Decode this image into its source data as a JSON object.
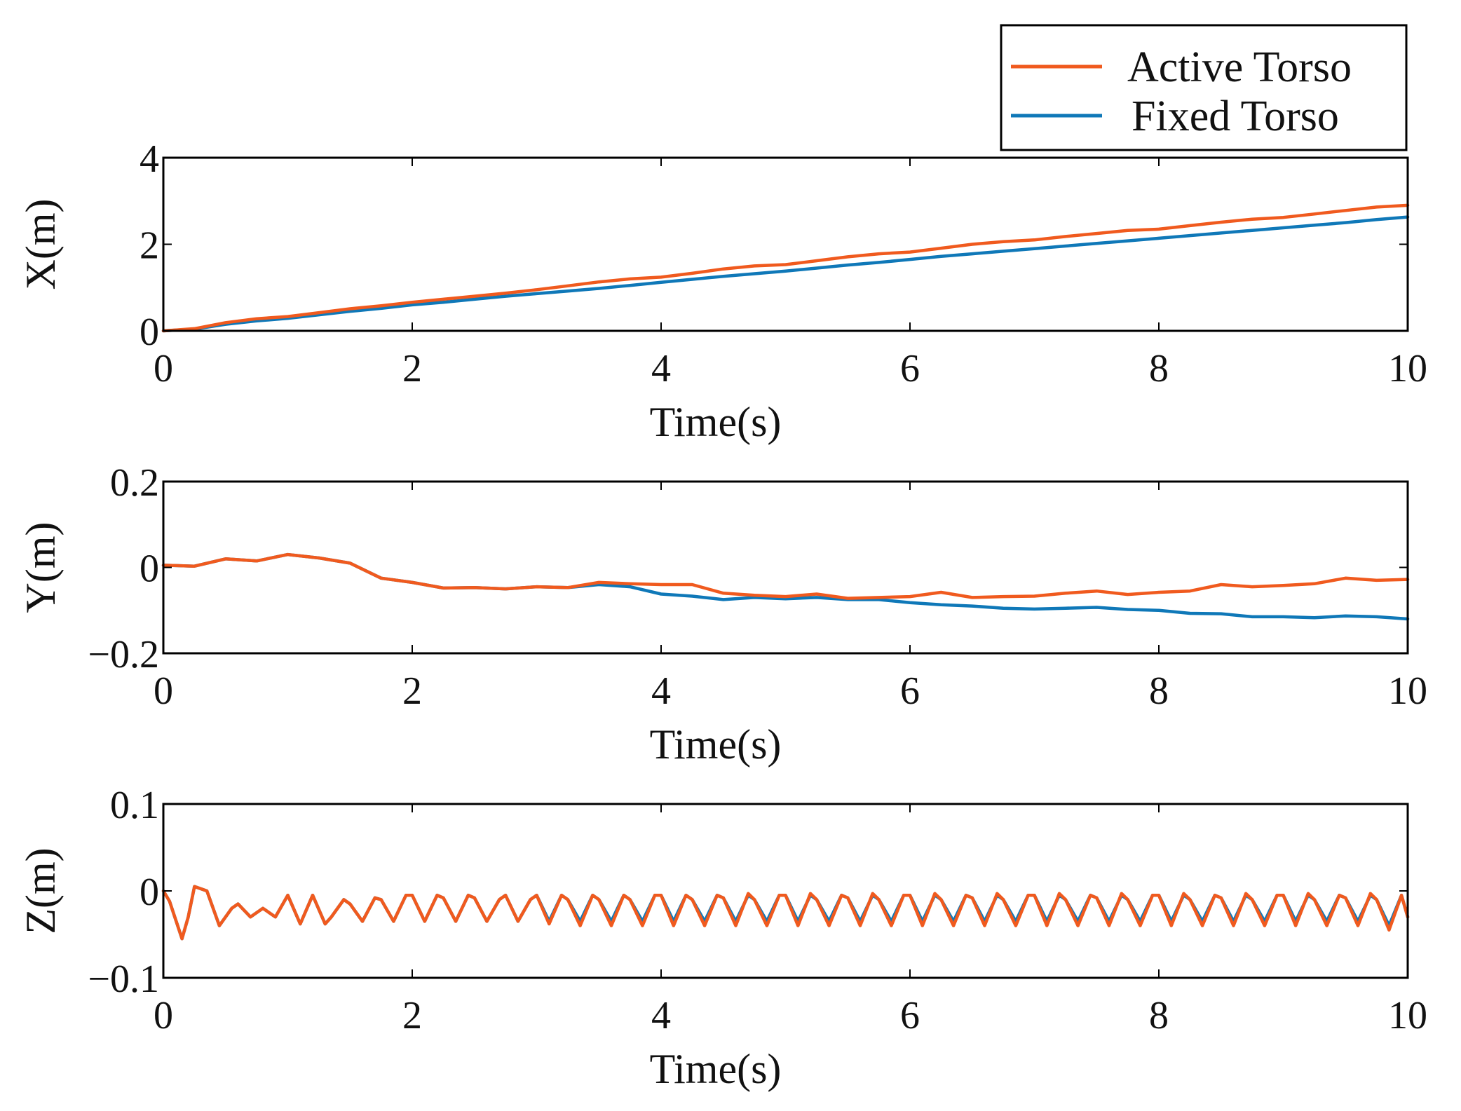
{
  "legend": {
    "entries": [
      {
        "name": "Active Torso",
        "color": "#F05A1E"
      },
      {
        "name": "Fixed Torso",
        "color": "#0F78B8"
      }
    ]
  },
  "chart_data": [
    {
      "type": "line",
      "ylabel": "X(m)",
      "xlabel": "Time(s)",
      "xlim": [
        0,
        10
      ],
      "ylim": [
        0,
        4
      ],
      "xticks": [
        0,
        2,
        4,
        6,
        8,
        10
      ],
      "yticks": [
        0,
        2,
        4
      ],
      "ytick_labels": [
        "0",
        "2",
        "4"
      ],
      "x": [
        0,
        0.25,
        0.5,
        0.75,
        1,
        1.25,
        1.5,
        1.75,
        2,
        2.25,
        2.5,
        2.75,
        3,
        3.25,
        3.5,
        3.75,
        4,
        4.25,
        4.5,
        4.75,
        5,
        5.25,
        5.5,
        5.75,
        6,
        6.25,
        6.5,
        6.75,
        7,
        7.25,
        7.5,
        7.75,
        8,
        8.25,
        8.5,
        8.75,
        9,
        9.25,
        9.5,
        9.75,
        10
      ],
      "series": [
        {
          "name": "Active Torso",
          "values": [
            0.0,
            0.05,
            0.19,
            0.28,
            0.33,
            0.42,
            0.51,
            0.58,
            0.66,
            0.73,
            0.8,
            0.87,
            0.95,
            1.04,
            1.13,
            1.2,
            1.24,
            1.33,
            1.43,
            1.5,
            1.53,
            1.62,
            1.71,
            1.78,
            1.82,
            1.91,
            2.0,
            2.06,
            2.1,
            2.18,
            2.25,
            2.32,
            2.35,
            2.43,
            2.51,
            2.58,
            2.62,
            2.7,
            2.78,
            2.86,
            2.9
          ]
        },
        {
          "name": "Fixed Torso",
          "values": [
            0.0,
            0.04,
            0.15,
            0.23,
            0.29,
            0.37,
            0.45,
            0.52,
            0.6,
            0.66,
            0.73,
            0.8,
            0.86,
            0.92,
            0.98,
            1.05,
            1.12,
            1.19,
            1.26,
            1.32,
            1.38,
            1.45,
            1.52,
            1.58,
            1.65,
            1.72,
            1.78,
            1.84,
            1.9,
            1.96,
            2.02,
            2.08,
            2.14,
            2.2,
            2.26,
            2.32,
            2.38,
            2.44,
            2.5,
            2.57,
            2.63
          ]
        }
      ]
    },
    {
      "type": "line",
      "ylabel": "Y(m)",
      "xlabel": "Time(s)",
      "xlim": [
        0,
        10
      ],
      "ylim": [
        -0.2,
        0.2
      ],
      "xticks": [
        0,
        2,
        4,
        6,
        8,
        10
      ],
      "yticks": [
        -0.2,
        0,
        0.2
      ],
      "ytick_labels": [
        "−0.2",
        "0",
        "0.2"
      ],
      "x": [
        0,
        0.25,
        0.5,
        0.75,
        1,
        1.25,
        1.5,
        1.75,
        2,
        2.25,
        2.5,
        2.75,
        3,
        3.25,
        3.5,
        3.75,
        4,
        4.25,
        4.5,
        4.75,
        5,
        5.25,
        5.5,
        5.75,
        6,
        6.25,
        6.5,
        6.75,
        7,
        7.25,
        7.5,
        7.75,
        8,
        8.25,
        8.5,
        8.75,
        9,
        9.25,
        9.5,
        9.75,
        10
      ],
      "series": [
        {
          "name": "Active Torso",
          "values": [
            0.005,
            0.003,
            0.02,
            0.015,
            0.03,
            0.022,
            0.01,
            -0.025,
            -0.035,
            -0.048,
            -0.047,
            -0.05,
            -0.045,
            -0.047,
            -0.035,
            -0.038,
            -0.04,
            -0.04,
            -0.06,
            -0.065,
            -0.068,
            -0.062,
            -0.072,
            -0.07,
            -0.068,
            -0.058,
            -0.07,
            -0.068,
            -0.067,
            -0.06,
            -0.055,
            -0.063,
            -0.058,
            -0.055,
            -0.04,
            -0.045,
            -0.042,
            -0.038,
            -0.025,
            -0.03,
            -0.028
          ]
        },
        {
          "name": "Fixed Torso",
          "values": [
            0.005,
            0.003,
            0.02,
            0.015,
            0.03,
            0.022,
            0.01,
            -0.025,
            -0.035,
            -0.048,
            -0.047,
            -0.05,
            -0.045,
            -0.047,
            -0.04,
            -0.045,
            -0.062,
            -0.067,
            -0.075,
            -0.07,
            -0.073,
            -0.07,
            -0.075,
            -0.075,
            -0.082,
            -0.087,
            -0.09,
            -0.095,
            -0.097,
            -0.095,
            -0.093,
            -0.098,
            -0.1,
            -0.107,
            -0.108,
            -0.115,
            -0.115,
            -0.117,
            -0.113,
            -0.115,
            -0.12
          ]
        }
      ]
    },
    {
      "type": "line",
      "ylabel": "Z(m)",
      "xlabel": "Time(s)",
      "xlim": [
        0,
        10
      ],
      "ylim": [
        -0.1,
        0.1
      ],
      "xticks": [
        0,
        2,
        4,
        6,
        8,
        10
      ],
      "yticks": [
        -0.1,
        0,
        0.1
      ],
      "ytick_labels": [
        "−0.1",
        "0",
        "0.1"
      ],
      "x": [
        0,
        0.05,
        0.15,
        0.2,
        0.25,
        0.35,
        0.45,
        0.55,
        0.6,
        0.7,
        0.8,
        0.9,
        1.0,
        1.1,
        1.2,
        1.3,
        1.35,
        1.45,
        1.5,
        1.6,
        1.7,
        1.75,
        1.85,
        1.95,
        2.0,
        2.1,
        2.2,
        2.25,
        2.35,
        2.45,
        2.5,
        2.6,
        2.7,
        2.75,
        2.85,
        2.95,
        3.0,
        3.1,
        3.2,
        3.25,
        3.35,
        3.45,
        3.5,
        3.6,
        3.7,
        3.75,
        3.85,
        3.95,
        4.0,
        4.1,
        4.2,
        4.25,
        4.35,
        4.45,
        4.5,
        4.6,
        4.7,
        4.75,
        4.85,
        4.95,
        5.0,
        5.1,
        5.2,
        5.25,
        5.35,
        5.45,
        5.5,
        5.6,
        5.7,
        5.75,
        5.85,
        5.95,
        6.0,
        6.1,
        6.2,
        6.25,
        6.35,
        6.45,
        6.5,
        6.6,
        6.7,
        6.75,
        6.85,
        6.95,
        7.0,
        7.1,
        7.2,
        7.25,
        7.35,
        7.45,
        7.5,
        7.6,
        7.7,
        7.75,
        7.85,
        7.95,
        8.0,
        8.1,
        8.2,
        8.25,
        8.35,
        8.45,
        8.5,
        8.6,
        8.7,
        8.75,
        8.85,
        8.95,
        9.0,
        9.1,
        9.2,
        9.25,
        9.35,
        9.45,
        9.5,
        9.6,
        9.7,
        9.75,
        9.85,
        9.95,
        10.0
      ],
      "series": [
        {
          "name": "Active Torso",
          "values": [
            0.0,
            -0.012,
            -0.055,
            -0.03,
            0.005,
            0.0,
            -0.04,
            -0.02,
            -0.015,
            -0.03,
            -0.02,
            -0.03,
            -0.005,
            -0.038,
            -0.005,
            -0.038,
            -0.03,
            -0.01,
            -0.015,
            -0.035,
            -0.008,
            -0.01,
            -0.035,
            -0.005,
            -0.005,
            -0.035,
            -0.005,
            -0.008,
            -0.035,
            -0.005,
            -0.008,
            -0.035,
            -0.01,
            -0.005,
            -0.035,
            -0.01,
            -0.005,
            -0.038,
            -0.005,
            -0.01,
            -0.04,
            -0.005,
            -0.01,
            -0.04,
            -0.005,
            -0.01,
            -0.04,
            -0.005,
            -0.005,
            -0.04,
            -0.005,
            -0.01,
            -0.04,
            -0.005,
            -0.008,
            -0.04,
            -0.003,
            -0.01,
            -0.04,
            -0.005,
            -0.005,
            -0.04,
            -0.003,
            -0.01,
            -0.04,
            -0.005,
            -0.008,
            -0.04,
            -0.003,
            -0.01,
            -0.04,
            -0.005,
            -0.005,
            -0.04,
            -0.003,
            -0.01,
            -0.04,
            -0.005,
            -0.008,
            -0.04,
            -0.003,
            -0.01,
            -0.04,
            -0.005,
            -0.005,
            -0.04,
            -0.003,
            -0.01,
            -0.04,
            -0.005,
            -0.008,
            -0.04,
            -0.003,
            -0.01,
            -0.04,
            -0.005,
            -0.005,
            -0.04,
            -0.003,
            -0.01,
            -0.04,
            -0.005,
            -0.008,
            -0.04,
            -0.003,
            -0.01,
            -0.04,
            -0.005,
            -0.005,
            -0.04,
            -0.003,
            -0.01,
            -0.04,
            -0.005,
            -0.008,
            -0.04,
            -0.003,
            -0.01,
            -0.045,
            -0.005,
            -0.03
          ]
        },
        {
          "name": "Fixed Torso",
          "values": [
            0.0,
            -0.012,
            -0.055,
            -0.03,
            0.005,
            0.0,
            -0.04,
            -0.02,
            -0.015,
            -0.03,
            -0.02,
            -0.03,
            -0.005,
            -0.038,
            -0.005,
            -0.038,
            -0.03,
            -0.01,
            -0.015,
            -0.035,
            -0.008,
            -0.01,
            -0.035,
            -0.005,
            -0.005,
            -0.035,
            -0.005,
            -0.008,
            -0.035,
            -0.005,
            -0.008,
            -0.035,
            -0.01,
            -0.005,
            -0.035,
            -0.01,
            -0.005,
            -0.035,
            -0.005,
            -0.01,
            -0.035,
            -0.005,
            -0.01,
            -0.035,
            -0.005,
            -0.01,
            -0.035,
            -0.005,
            -0.005,
            -0.035,
            -0.005,
            -0.01,
            -0.035,
            -0.005,
            -0.008,
            -0.035,
            -0.005,
            -0.01,
            -0.035,
            -0.005,
            -0.005,
            -0.035,
            -0.005,
            -0.01,
            -0.035,
            -0.005,
            -0.008,
            -0.035,
            -0.005,
            -0.01,
            -0.035,
            -0.005,
            -0.005,
            -0.035,
            -0.005,
            -0.01,
            -0.035,
            -0.005,
            -0.008,
            -0.035,
            -0.005,
            -0.01,
            -0.035,
            -0.005,
            -0.005,
            -0.035,
            -0.005,
            -0.01,
            -0.035,
            -0.005,
            -0.008,
            -0.035,
            -0.005,
            -0.01,
            -0.035,
            -0.005,
            -0.005,
            -0.035,
            -0.005,
            -0.01,
            -0.035,
            -0.005,
            -0.008,
            -0.035,
            -0.005,
            -0.01,
            -0.035,
            -0.005,
            -0.005,
            -0.035,
            -0.005,
            -0.01,
            -0.035,
            -0.005,
            -0.008,
            -0.035,
            -0.005,
            -0.01,
            -0.04,
            -0.005,
            -0.03
          ]
        }
      ]
    }
  ]
}
